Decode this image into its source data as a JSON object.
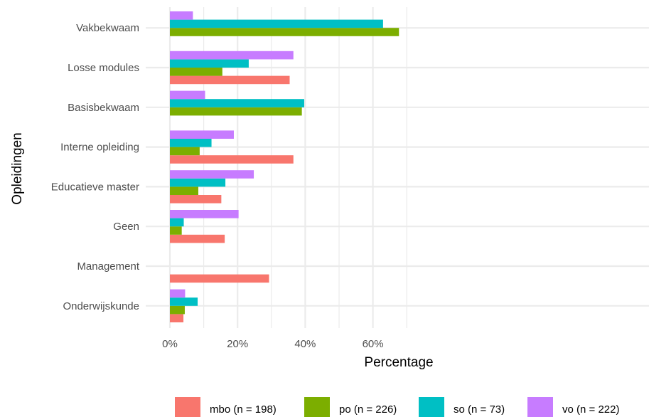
{
  "chart_data": {
    "type": "bar",
    "orientation": "horizontal",
    "categories": [
      "Vakbekwaam",
      "Losse modules",
      "Basisbekwaam",
      "Interne opleiding",
      "Educatieve master",
      "Geen",
      "Management",
      "Onderwijskunde"
    ],
    "series": [
      {
        "name": "mbo (n = 198)",
        "color": "#F8766D",
        "values": [
          null,
          35.4,
          null,
          36.5,
          15.2,
          16.2,
          29.3,
          4.0
        ]
      },
      {
        "name": "po (n = 226)",
        "color": "#7CAE00",
        "values": [
          67.7,
          15.5,
          39.0,
          8.8,
          8.4,
          3.5,
          null,
          4.4
        ]
      },
      {
        "name": "so (n = 73)",
        "color": "#00BFC4",
        "values": [
          63.0,
          23.3,
          39.7,
          12.3,
          16.4,
          4.1,
          null,
          8.2
        ]
      },
      {
        "name": "vo (n = 222)",
        "color": "#C77CFF",
        "values": [
          6.8,
          36.5,
          10.4,
          18.9,
          24.8,
          20.3,
          null,
          4.5
        ]
      }
    ],
    "xlabel": "Percentage",
    "ylabel": "Opleidingen",
    "xlim": [
      0,
      70
    ],
    "xticks": [
      0,
      20,
      40,
      60
    ],
    "xtick_labels": [
      "0%",
      "20%",
      "40%",
      "60%"
    ],
    "grid": true,
    "legend_position": "bottom"
  }
}
